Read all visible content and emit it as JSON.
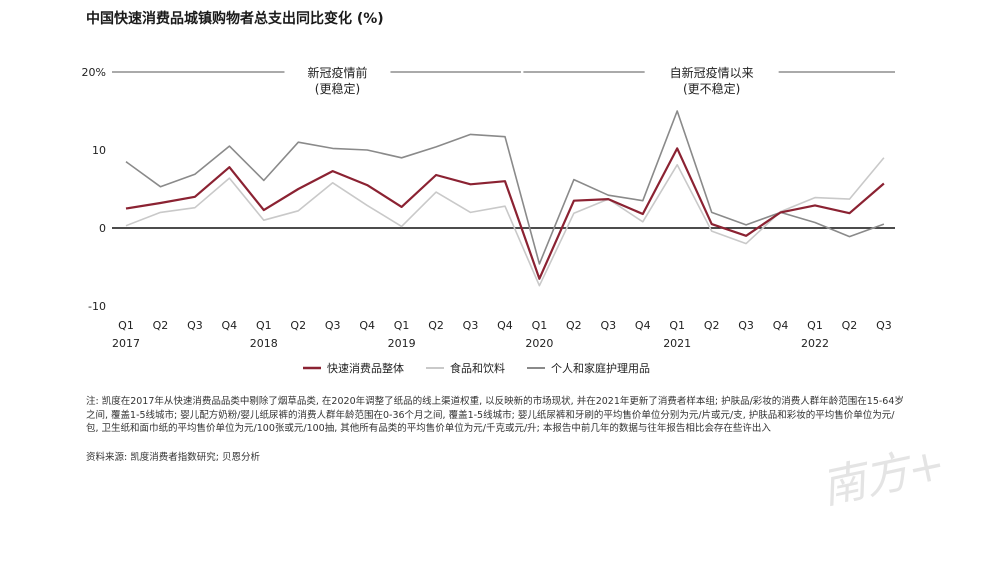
{
  "title": "中国快速消费品城镇购物者总支出同比变化 (%)",
  "chart_data": {
    "type": "line",
    "title": "中国快速消费品城镇购物者总支出同比变化 (%)",
    "ylim": [
      -10,
      20
    ],
    "yticks": [
      -10,
      0,
      10,
      20
    ],
    "ytick_labels": [
      "-10",
      "0",
      "10",
      "20%"
    ],
    "categories": [
      "Q1",
      "Q2",
      "Q3",
      "Q4",
      "Q1",
      "Q2",
      "Q3",
      "Q4",
      "Q1",
      "Q2",
      "Q3",
      "Q4",
      "Q1",
      "Q2",
      "Q3",
      "Q4",
      "Q1",
      "Q2",
      "Q3",
      "Q4",
      "Q1",
      "Q2",
      "Q3"
    ],
    "year_labels": [
      {
        "index": 0,
        "label": "2017"
      },
      {
        "index": 4,
        "label": "2018"
      },
      {
        "index": 8,
        "label": "2019"
      },
      {
        "index": 12,
        "label": "2020"
      },
      {
        "index": 16,
        "label": "2021"
      },
      {
        "index": 20,
        "label": "2022"
      }
    ],
    "periods": [
      {
        "label": "新冠疫情前",
        "sublabel": "(更稳定)",
        "start_index": 0,
        "end_index": 11
      },
      {
        "label": "自新冠疫情以来",
        "sublabel": "(更不稳定)",
        "start_index": 12,
        "end_index": 22
      }
    ],
    "series": [
      {
        "name": "快速消费品整体",
        "color": "#8b2232",
        "width": 2.2,
        "values": [
          2.5,
          3.2,
          4.0,
          7.8,
          2.3,
          5.0,
          7.3,
          5.5,
          2.7,
          6.8,
          5.6,
          6.0,
          -6.5,
          3.5,
          3.7,
          1.8,
          10.2,
          0.5,
          -1.0,
          2.0,
          2.9,
          1.9,
          5.7
        ]
      },
      {
        "name": "食品和饮料",
        "color": "#c9c9c9",
        "width": 1.6,
        "values": [
          0.3,
          2.0,
          2.6,
          6.4,
          1.0,
          2.2,
          5.8,
          2.9,
          0.2,
          4.6,
          2.0,
          2.8,
          -7.4,
          1.9,
          3.7,
          0.8,
          8.1,
          -0.4,
          -2.0,
          2.1,
          3.9,
          3.7,
          9.0
        ]
      },
      {
        "name": "个人和家庭护理用品",
        "color": "#8a8a8a",
        "width": 1.6,
        "values": [
          8.5,
          5.3,
          6.9,
          10.5,
          6.1,
          11.0,
          10.2,
          10.0,
          9.0,
          10.4,
          12.0,
          11.7,
          -4.6,
          6.2,
          4.2,
          3.5,
          15.0,
          2.0,
          0.4,
          2.0,
          0.7,
          -1.1,
          0.5
        ]
      }
    ],
    "legend_position": "bottom-center"
  },
  "note": "注: 凯度在2017年从快速消费品品类中剔除了烟草品类, 在2020年调整了纸品的线上渠道权重, 以反映新的市场现状, 并在2021年更新了消费者样本组; 护肤品/彩妆的消费人群年龄范围在15-64岁之间, 覆盖1-5线城市; 婴儿配方奶粉/婴儿纸尿裤的消费人群年龄范围在0-36个月之间, 覆盖1-5线城市; 婴儿纸尿裤和牙刷的平均售价单位分别为元/片或元/支, 护肤品和彩妆的平均售价单位为元/包, 卫生纸和面巾纸的平均售价单位为元/100张或元/100抽, 其他所有品类的平均售价单位为元/千克或元/升; 本报告中前几年的数据与往年报告相比会存在些许出入",
  "source": "资料来源: 凯度消费者指数研究; 贝恩分析",
  "watermark": "南方+"
}
